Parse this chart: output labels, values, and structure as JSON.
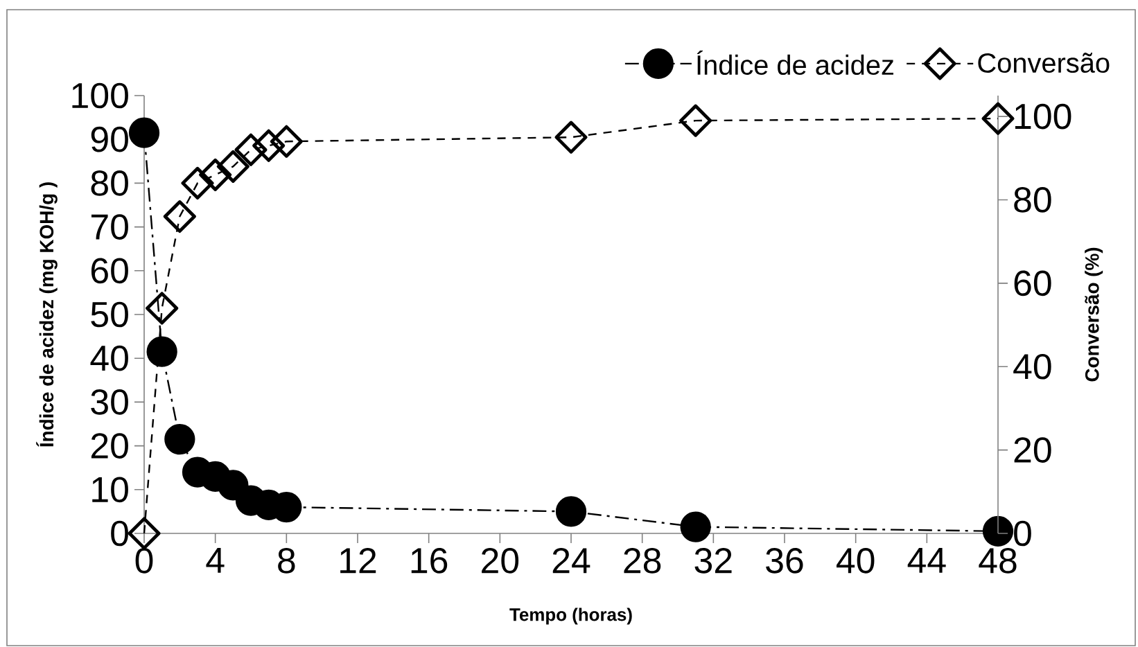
{
  "chart_data": {
    "type": "line",
    "xlabel": "Tempo (horas)",
    "ylabel": "Índice de acidez (mg KOH/g )",
    "y2label": "Conversão (%)",
    "x": [
      0,
      1,
      2,
      3,
      4,
      5,
      6,
      7,
      8,
      24,
      31,
      48
    ],
    "series": [
      {
        "name": "Índice de acidez",
        "color": "#000000",
        "marker": "circle",
        "line_style": "dashdot",
        "values": [
          91.5,
          41.5,
          21.5,
          14,
          13,
          11,
          7.5,
          6.5,
          6,
          5,
          1.5,
          0.5
        ]
      },
      {
        "name": "Conversão",
        "color": "#000000",
        "marker": "diamond",
        "line_style": "dashed",
        "axis": "y2",
        "values": [
          0,
          54,
          76,
          84,
          86,
          88,
          92,
          93,
          94,
          95,
          99,
          99.5
        ]
      }
    ],
    "xlim": [
      0,
      48
    ],
    "xticks": [
      0,
      4,
      8,
      12,
      16,
      20,
      24,
      28,
      32,
      36,
      40,
      44,
      48
    ],
    "ylim": [
      0,
      100
    ],
    "yticks": [
      0,
      10,
      20,
      30,
      40,
      50,
      60,
      70,
      80,
      90,
      100
    ],
    "y2lim": [
      0,
      105
    ],
    "y2ticks": [
      0,
      20,
      40,
      60,
      80,
      100
    ],
    "grid": false,
    "legend": "top right"
  }
}
